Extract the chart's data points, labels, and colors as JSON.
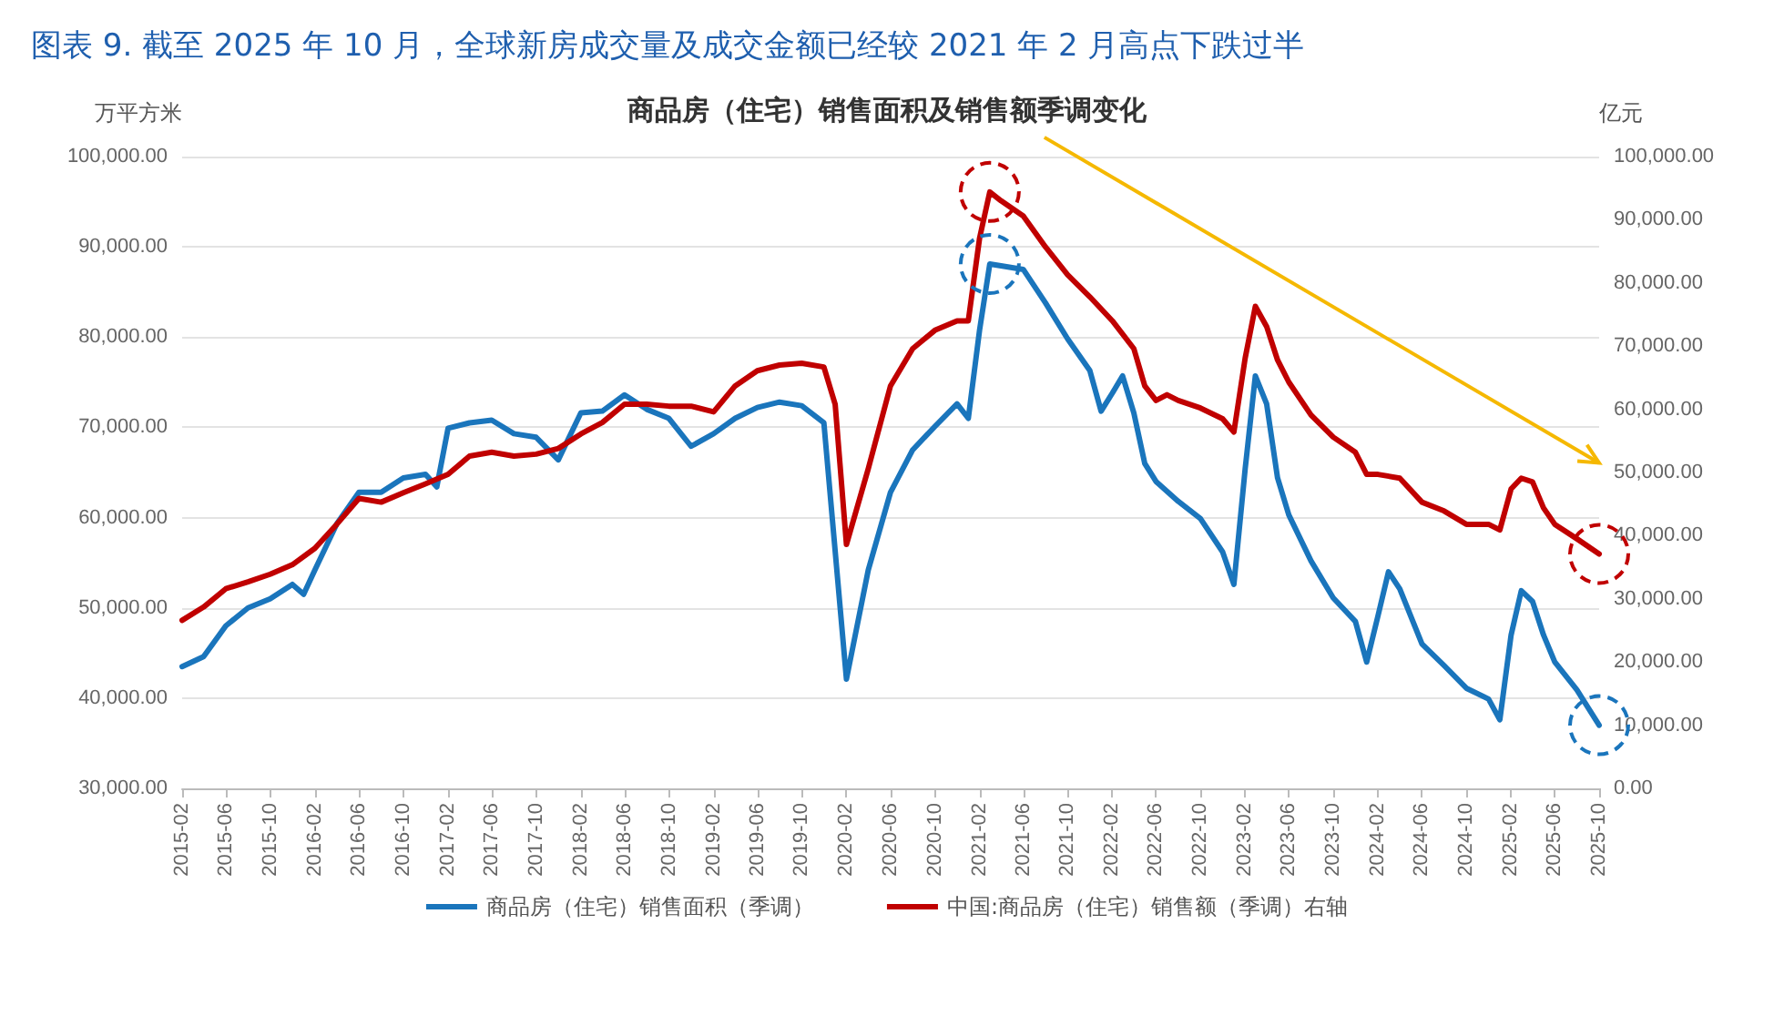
{
  "chart_data": {
    "type": "line",
    "title": "图表 9. 截至 2025 年 10 月，全球新房成交量及成交金额已经较 2021 年 2 月高点下跌过半",
    "subtitle": "商品房（住宅）销售面积及销售额季调变化",
    "ylabel": "万平方米",
    "y2label": "亿元",
    "xlim": [
      "2015-02",
      "2025-10"
    ],
    "xticks": [
      "2015-02",
      "2015-06",
      "2015-10",
      "2016-02",
      "2016-06",
      "2016-10",
      "2017-02",
      "2017-06",
      "2017-10",
      "2018-02",
      "2018-06",
      "2018-10",
      "2019-02",
      "2019-06",
      "2019-10",
      "2020-02",
      "2020-06",
      "2020-10",
      "2021-02",
      "2021-06",
      "2021-10",
      "2022-02",
      "2022-06",
      "2022-10",
      "2023-02",
      "2023-06",
      "2023-10",
      "2024-02",
      "2024-06",
      "2024-10",
      "2025-02",
      "2025-06",
      "2025-10"
    ],
    "ylim": [
      30000,
      100000
    ],
    "yticks": [
      {
        "value": 30000,
        "label": "30,000.00"
      },
      {
        "value": 40000,
        "label": "40,000.00"
      },
      {
        "value": 50000,
        "label": "50,000.00"
      },
      {
        "value": 60000,
        "label": "60,000.00"
      },
      {
        "value": 70000,
        "label": "70,000.00"
      },
      {
        "value": 80000,
        "label": "80,000.00"
      },
      {
        "value": 90000,
        "label": "90,000.00"
      },
      {
        "value": 100000,
        "label": "100,000.00"
      }
    ],
    "y2lim": [
      0,
      100000
    ],
    "y2ticks": [
      {
        "value": 0,
        "label": "0.00"
      },
      {
        "value": 10000,
        "label": "10,000.00"
      },
      {
        "value": 20000,
        "label": "20,000.00"
      },
      {
        "value": 30000,
        "label": "30,000.00"
      },
      {
        "value": 40000,
        "label": "40,000.00"
      },
      {
        "value": 50000,
        "label": "50,000.00"
      },
      {
        "value": 60000,
        "label": "60,000.00"
      },
      {
        "value": 70000,
        "label": "70,000.00"
      },
      {
        "value": 80000,
        "label": "80,000.00"
      },
      {
        "value": 90000,
        "label": "90,000.00"
      },
      {
        "value": 100000,
        "label": "100,000.00"
      }
    ],
    "grid": "y",
    "legend": "bottom",
    "marker": "none",
    "line_style": "solid",
    "series": [
      {
        "name": "商品房（住宅）销售面积（季调）",
        "color": "#1a75bc",
        "x": [
          "2015-02",
          "2015-04",
          "2015-06",
          "2015-08",
          "2015-10",
          "2015-12",
          "2016-01",
          "2016-02",
          "2016-04",
          "2016-06",
          "2016-08",
          "2016-10",
          "2016-12",
          "2017-01",
          "2017-02",
          "2017-04",
          "2017-06",
          "2017-08",
          "2017-10",
          "2017-12",
          "2018-02",
          "2018-04",
          "2018-06",
          "2018-08",
          "2018-10",
          "2018-12",
          "2019-02",
          "2019-04",
          "2019-06",
          "2019-08",
          "2019-10",
          "2019-12",
          "2020-02",
          "2020-04",
          "2020-06",
          "2020-08",
          "2020-10",
          "2020-12",
          "2021-01",
          "2021-02",
          "2021-03",
          "2021-04",
          "2021-06",
          "2021-08",
          "2021-10",
          "2021-12",
          "2022-01",
          "2022-02",
          "2022-03",
          "2022-04",
          "2022-05",
          "2022-06",
          "2022-08",
          "2022-10",
          "2022-12",
          "2023-01",
          "2023-02",
          "2023-03",
          "2023-04",
          "2023-05",
          "2023-06",
          "2023-08",
          "2023-10",
          "2023-12",
          "2024-01",
          "2024-02",
          "2024-03",
          "2024-04",
          "2024-06",
          "2024-08",
          "2024-10",
          "2024-12",
          "2025-01",
          "2025-02",
          "2025-03",
          "2025-04",
          "2025-05",
          "2025-06",
          "2025-08",
          "2025-10"
        ],
        "values": [
          43500,
          44600,
          48000,
          50000,
          51000,
          52600,
          51500,
          54200,
          59300,
          62800,
          62800,
          64400,
          64800,
          63400,
          69900,
          70500,
          70800,
          69300,
          68900,
          66400,
          71600,
          71800,
          73600,
          72000,
          71000,
          67900,
          69300,
          71000,
          72200,
          72800,
          72400,
          70500,
          42100,
          54200,
          62800,
          67500,
          70100,
          72600,
          71000,
          80800,
          88100,
          87900,
          87500,
          83800,
          79800,
          76300,
          71800,
          73800,
          75700,
          71600,
          66000,
          64000,
          61800,
          59900,
          56200,
          52600,
          65400,
          75700,
          72600,
          64400,
          60300,
          55200,
          51100,
          48500,
          44000,
          49100,
          54000,
          52100,
          46000,
          43600,
          41100,
          39900,
          37600,
          47000,
          51900,
          50700,
          47000,
          44000,
          40900,
          37000
        ]
      },
      {
        "name": "中国:商品房（住宅）销售额（季调）右轴",
        "color": "#c00000",
        "axis": "y2",
        "x": [
          "2015-02",
          "2015-04",
          "2015-06",
          "2015-08",
          "2015-10",
          "2015-12",
          "2016-02",
          "2016-04",
          "2016-06",
          "2016-08",
          "2016-10",
          "2016-12",
          "2017-02",
          "2017-04",
          "2017-06",
          "2017-08",
          "2017-10",
          "2017-12",
          "2018-02",
          "2018-04",
          "2018-06",
          "2018-08",
          "2018-10",
          "2018-12",
          "2019-02",
          "2019-04",
          "2019-06",
          "2019-08",
          "2019-10",
          "2019-12",
          "2020-01",
          "2020-02",
          "2020-04",
          "2020-06",
          "2020-08",
          "2020-10",
          "2020-12",
          "2021-01",
          "2021-02",
          "2021-03",
          "2021-04",
          "2021-06",
          "2021-08",
          "2021-10",
          "2021-12",
          "2022-02",
          "2022-04",
          "2022-05",
          "2022-06",
          "2022-07",
          "2022-08",
          "2022-10",
          "2022-12",
          "2023-01",
          "2023-02",
          "2023-03",
          "2023-04",
          "2023-05",
          "2023-06",
          "2023-08",
          "2023-10",
          "2023-12",
          "2024-01",
          "2024-02",
          "2024-04",
          "2024-06",
          "2024-08",
          "2024-10",
          "2024-12",
          "2025-01",
          "2025-02",
          "2025-03",
          "2025-04",
          "2025-05",
          "2025-06",
          "2025-08",
          "2025-10"
        ],
        "values": [
          26600,
          28700,
          31600,
          32700,
          33900,
          35400,
          38000,
          41800,
          45900,
          45300,
          46800,
          48200,
          49700,
          52600,
          53200,
          52600,
          52900,
          53800,
          56100,
          57900,
          60800,
          60800,
          60500,
          60500,
          59600,
          63700,
          66100,
          67000,
          67300,
          66700,
          60800,
          38600,
          50600,
          63700,
          69600,
          72500,
          74000,
          74000,
          87100,
          94400,
          93000,
          90600,
          85700,
          81300,
          77800,
          74000,
          69600,
          63700,
          61400,
          62300,
          61400,
          60200,
          58500,
          56400,
          68100,
          76300,
          73100,
          67800,
          64300,
          59100,
          55600,
          53200,
          49700,
          49700,
          49100,
          45300,
          43900,
          41800,
          41800,
          40900,
          47400,
          49100,
          48500,
          44400,
          41800,
          39500,
          37100
        ]
      }
    ]
  }
}
